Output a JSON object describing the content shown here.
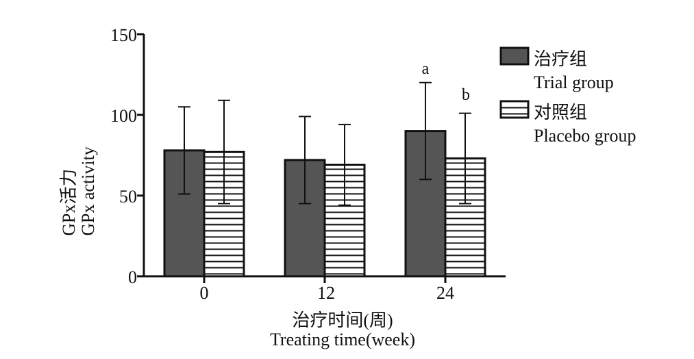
{
  "chart_data": {
    "type": "bar",
    "categories": [
      "0",
      "12",
      "24"
    ],
    "series": [
      {
        "name": "治疗组 Trial group",
        "values": [
          78,
          72,
          90
        ],
        "errors": [
          27,
          27,
          30
        ],
        "color": "#555555",
        "pattern": "solid"
      },
      {
        "name": "对照组 Placebo group",
        "values": [
          77,
          69,
          73
        ],
        "errors": [
          32,
          25,
          28
        ],
        "color": "#ffffff",
        "pattern": "horizontal-stripes"
      }
    ],
    "significance": [
      {
        "category": "24",
        "series": 0,
        "label": "a"
      },
      {
        "category": "24",
        "series": 1,
        "label": "b"
      }
    ],
    "ylim": [
      0,
      150
    ],
    "yticks": [
      0,
      50,
      100,
      150
    ],
    "xlabel_cn": "治疗时间(周)",
    "xlabel_en": "Treating time(week)",
    "ylabel_cn": "GPx活力",
    "ylabel_en": "GPx activity",
    "legend": [
      {
        "cn": "治疗组",
        "en": "Trial group"
      },
      {
        "cn": "对照组",
        "en": "Placebo group"
      }
    ]
  }
}
